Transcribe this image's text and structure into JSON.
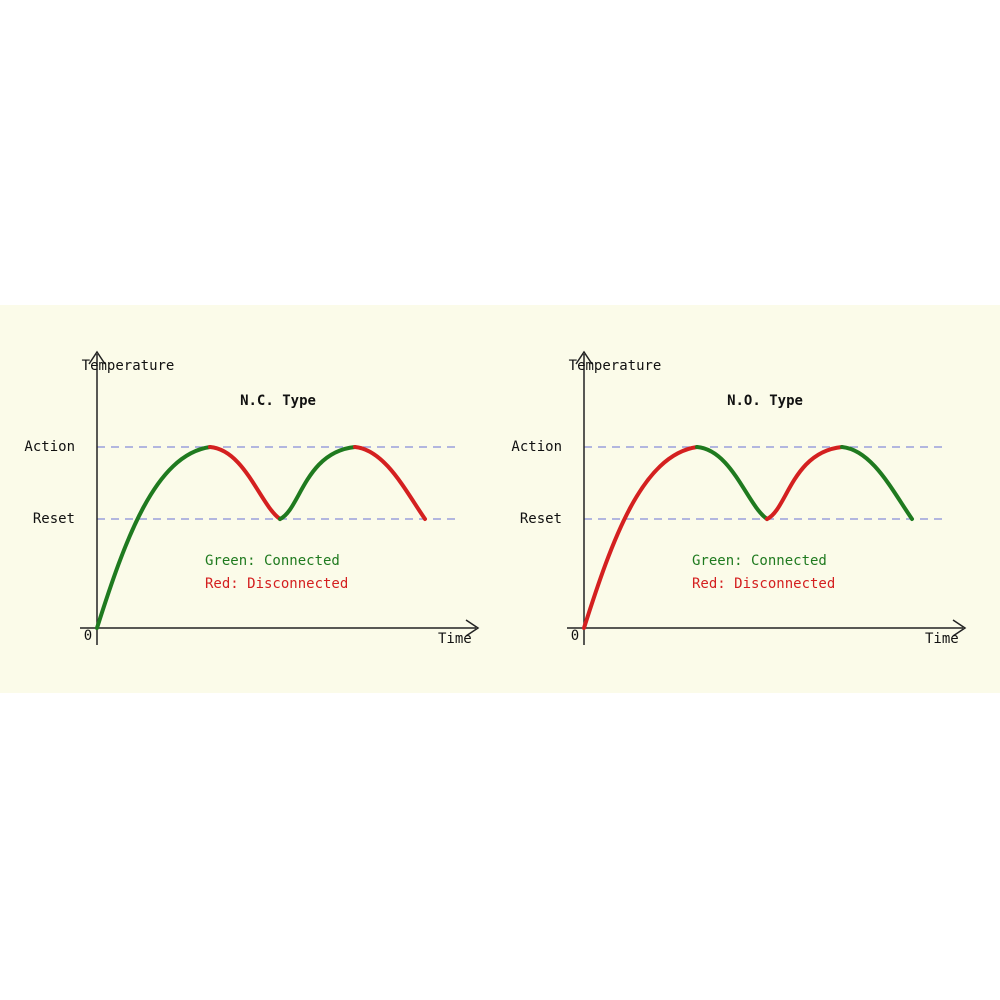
{
  "panels": [
    {
      "title": "N.C. Type",
      "y_axis_label": "Temperature",
      "x_axis_label": "Time",
      "origin_label": "0",
      "levels": [
        "Action",
        "Reset"
      ],
      "legend": [
        "Green: Connected",
        "Red: Disconnected"
      ]
    },
    {
      "title": "N.O. Type",
      "y_axis_label": "Temperature",
      "x_axis_label": "Time",
      "origin_label": "0",
      "levels": [
        "Action",
        "Reset"
      ],
      "legend": [
        "Green: Connected",
        "Red: Disconnected"
      ]
    }
  ]
}
